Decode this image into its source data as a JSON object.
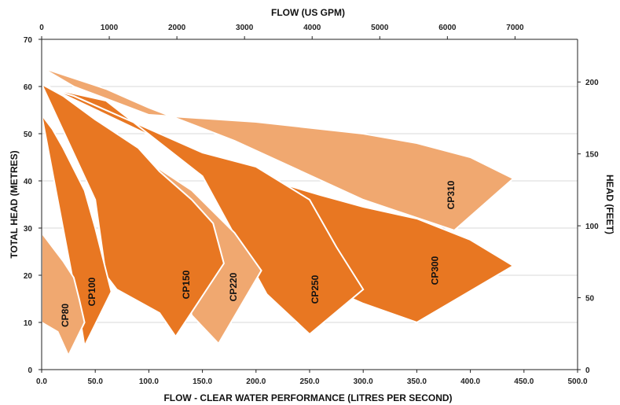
{
  "chart_data": {
    "type": "area",
    "title": "",
    "xlabel": "FLOW - CLEAR WATER PERFORMANCE (LITRES PER SECOND)",
    "ylabel": "TOTAL HEAD (METRES)",
    "x2label": "FLOW (US GPM)",
    "y2label": "HEAD (FEET)",
    "xlim": [
      0,
      500
    ],
    "ylim": [
      0,
      70
    ],
    "x2lim": [
      0,
      7925
    ],
    "y2lim": [
      0,
      229.66
    ],
    "x_ticks": [
      "0.0",
      "50.0",
      "100.0",
      "150.0",
      "200.0",
      "250.0",
      "300.0",
      "350.0",
      "400.0",
      "450.0",
      "500.0"
    ],
    "y_ticks": [
      "0",
      "10",
      "20",
      "30",
      "40",
      "50",
      "60",
      "70"
    ],
    "x2_ticks": [
      "0",
      "1000",
      "2000",
      "3000",
      "4000",
      "5000",
      "6000",
      "7000"
    ],
    "y2_ticks": [
      "0",
      "50",
      "100",
      "150",
      "200"
    ],
    "grid": true,
    "colors": {
      "light": "#F0A870",
      "dark": "#E87722",
      "outline": "#ffffff"
    },
    "series": [
      {
        "name": "CP310",
        "shade": "light",
        "label_at": [
          385,
          37
        ],
        "polygon": [
          [
            0,
            64
          ],
          [
            30,
            60
          ],
          [
            100,
            54
          ],
          [
            200,
            52.5
          ],
          [
            300,
            50
          ],
          [
            350,
            48
          ],
          [
            400,
            45
          ],
          [
            440,
            40.5
          ],
          [
            385,
            29.5
          ],
          [
            300,
            36
          ],
          [
            180,
            48.5
          ],
          [
            100,
            55.5
          ],
          [
            60,
            59.5
          ],
          [
            0,
            64
          ]
        ]
      },
      {
        "name": "CP300",
        "shade": "dark",
        "label_at": [
          370,
          21
        ],
        "polygon": [
          [
            0,
            60.5
          ],
          [
            30,
            58
          ],
          [
            60,
            55
          ],
          [
            100,
            51
          ],
          [
            150,
            46
          ],
          [
            200,
            41
          ],
          [
            260,
            37
          ],
          [
            300,
            34.5
          ],
          [
            350,
            32
          ],
          [
            400,
            27.5
          ],
          [
            440,
            22
          ],
          [
            350,
            10
          ],
          [
            300,
            14
          ],
          [
            270,
            17
          ],
          [
            130,
            46.5
          ],
          [
            0,
            60.5
          ]
        ]
      },
      {
        "name": "CP250",
        "shade": "dark",
        "label_at": [
          258,
          17
        ],
        "polygon": [
          [
            0,
            60
          ],
          [
            30,
            58
          ],
          [
            60,
            55
          ],
          [
            100,
            51
          ],
          [
            150,
            46
          ],
          [
            200,
            43
          ],
          [
            250,
            36
          ],
          [
            275,
            26
          ],
          [
            300,
            17
          ],
          [
            250,
            7.5
          ],
          [
            210,
            16
          ],
          [
            150,
            41
          ],
          [
            60,
            57
          ],
          [
            0,
            60
          ]
        ]
      },
      {
        "name": "CP220",
        "shade": "light",
        "label_at": [
          182,
          17.5
        ],
        "polygon": [
          [
            0,
            54
          ],
          [
            20,
            52
          ],
          [
            50,
            48
          ],
          [
            100,
            44
          ],
          [
            140,
            38
          ],
          [
            180,
            29
          ],
          [
            205,
            21
          ],
          [
            165,
            5.5
          ],
          [
            140,
            11.5
          ],
          [
            115,
            37
          ],
          [
            40,
            50
          ],
          [
            0,
            54
          ]
        ]
      },
      {
        "name": "CP150",
        "shade": "dark",
        "label_at": [
          138,
          18
        ],
        "polygon": [
          [
            0,
            60.5
          ],
          [
            20,
            58
          ],
          [
            50,
            53
          ],
          [
            90,
            47
          ],
          [
            110,
            42
          ],
          [
            140,
            36
          ],
          [
            160,
            31
          ],
          [
            170,
            22.5
          ],
          [
            125,
            7
          ],
          [
            110,
            12
          ],
          [
            70,
            17
          ],
          [
            60,
            20
          ],
          [
            50,
            36
          ],
          [
            0,
            60.5
          ]
        ]
      },
      {
        "name": "CP100",
        "shade": "dark",
        "label_at": [
          50,
          16.5
        ],
        "polygon": [
          [
            0,
            54
          ],
          [
            10,
            51
          ],
          [
            20,
            47
          ],
          [
            40,
            38
          ],
          [
            50,
            30
          ],
          [
            65,
            16.5
          ],
          [
            40,
            5
          ],
          [
            35,
            12
          ],
          [
            0,
            54
          ]
        ]
      },
      {
        "name": "CP80",
        "shade": "light",
        "label_at": [
          25,
          11.5
        ],
        "polygon": [
          [
            0,
            29
          ],
          [
            10,
            26
          ],
          [
            20,
            23
          ],
          [
            30,
            19.5
          ],
          [
            35,
            15
          ],
          [
            40,
            10
          ],
          [
            25,
            3
          ],
          [
            15,
            8
          ],
          [
            0,
            10
          ],
          [
            0,
            29
          ]
        ]
      }
    ]
  }
}
